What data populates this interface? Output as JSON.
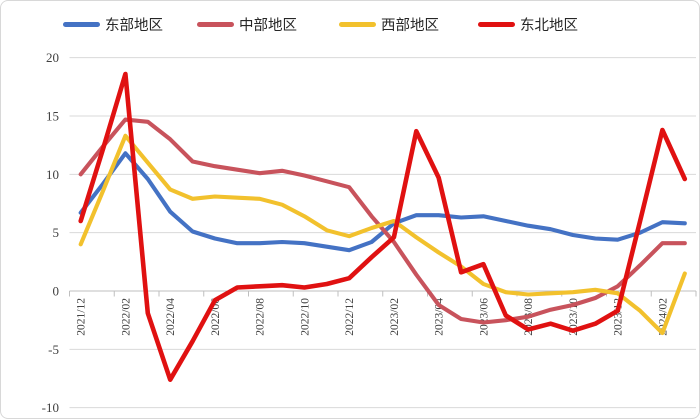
{
  "legend": {
    "items": [
      {
        "id": "east",
        "label": "东部地区",
        "color": "#4472C4"
      },
      {
        "id": "central",
        "label": "中部地区",
        "color": "#C8535C"
      },
      {
        "id": "west",
        "label": "西部地区",
        "color": "#F2C12D"
      },
      {
        "id": "northeast",
        "label": "东北地区",
        "color": "#E01111"
      }
    ]
  },
  "y_axis": {
    "tick_labels": [
      "20",
      "15",
      "10",
      "5",
      "0",
      "-5",
      "-10"
    ],
    "min": -10,
    "max": 20,
    "step": 5
  },
  "x_axis": {
    "shown_tick_labels": [
      "2021/12",
      "2022/02",
      "2022/04",
      "2022/06",
      "2022/08",
      "2022/10",
      "2022/12",
      "2023/02",
      "2023/04",
      "2023/06",
      "2023/08",
      "2023/10",
      "2023/12",
      "2024/02"
    ]
  },
  "chart_data": {
    "type": "line",
    "title": "",
    "xlabel": "",
    "ylabel": "",
    "ylim": [
      -10,
      20
    ],
    "y_step": 5,
    "grid": true,
    "legend_position": "top",
    "x_labels_every": 2,
    "categories": [
      "2021/12",
      "2022/01",
      "2022/02",
      "2022/03",
      "2022/04",
      "2022/05",
      "2022/06",
      "2022/07",
      "2022/08",
      "2022/09",
      "2022/10",
      "2022/11",
      "2022/12",
      "2023/01",
      "2023/02",
      "2023/03",
      "2023/04",
      "2023/05",
      "2023/06",
      "2023/07",
      "2023/08",
      "2023/09",
      "2023/10",
      "2023/11",
      "2023/12",
      "2024/01",
      "2024/02",
      "2024/03"
    ],
    "series": [
      {
        "id": "east",
        "name": "东部地区",
        "color": "#4472C4",
        "values": [
          6.7,
          9.2,
          11.8,
          9.6,
          6.8,
          5.1,
          4.5,
          4.1,
          4.1,
          4.2,
          4.1,
          3.8,
          3.5,
          4.2,
          5.8,
          6.5,
          6.5,
          6.3,
          6.4,
          6.0,
          5.6,
          5.3,
          4.8,
          4.5,
          4.4,
          5.0,
          5.9,
          5.8
        ]
      },
      {
        "id": "central",
        "name": "中部地区",
        "color": "#C8535C",
        "values": [
          10.0,
          12.4,
          14.7,
          14.5,
          13.0,
          11.1,
          10.7,
          10.4,
          10.1,
          10.3,
          9.9,
          9.4,
          8.9,
          6.4,
          4.2,
          1.4,
          -1.2,
          -2.4,
          -2.7,
          -2.5,
          -2.2,
          -1.6,
          -1.2,
          -0.6,
          0.4,
          2.2,
          4.1,
          4.1
        ]
      },
      {
        "id": "west",
        "name": "西部地区",
        "color": "#F2C12D",
        "values": [
          4.0,
          8.6,
          13.3,
          11.0,
          8.7,
          7.9,
          8.1,
          8.0,
          7.9,
          7.4,
          6.4,
          5.2,
          4.7,
          5.4,
          6.0,
          4.6,
          3.3,
          2.1,
          0.6,
          -0.1,
          -0.3,
          -0.2,
          -0.1,
          0.1,
          -0.2,
          -1.7,
          -3.6,
          1.5
        ]
      },
      {
        "id": "northeast",
        "name": "东北地区",
        "color": "#E01111",
        "values": [
          6.0,
          12.2,
          18.6,
          -1.9,
          -7.6,
          -4.3,
          -0.8,
          0.3,
          0.4,
          0.5,
          0.3,
          0.6,
          1.1,
          2.9,
          4.6,
          13.7,
          9.7,
          1.6,
          2.3,
          -2.1,
          -3.3,
          -2.8,
          -3.4,
          -2.8,
          -1.7,
          6.0,
          13.8,
          9.6
        ]
      }
    ]
  }
}
